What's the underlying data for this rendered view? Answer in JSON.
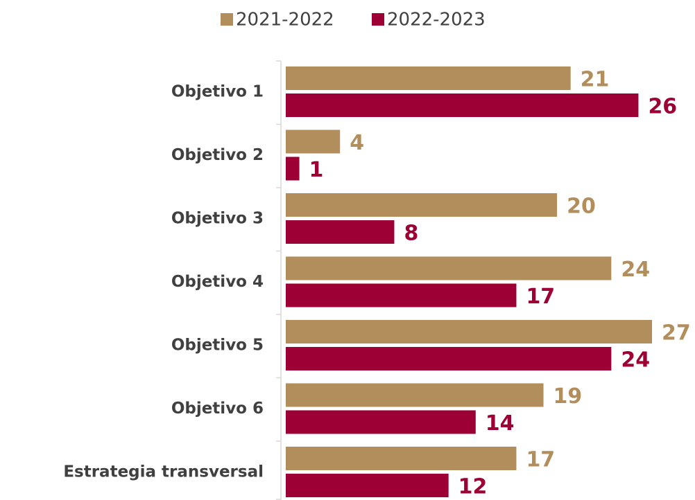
{
  "chart_data": {
    "type": "hbar",
    "categories": [
      "Objetivo 1",
      "Objetivo 2",
      "Objetivo 3",
      "Objetivo 4",
      "Objetivo 5",
      "Objetivo 6",
      "Estrategia transversal"
    ],
    "series": [
      {
        "name": "2021-2022",
        "color": "#b38e5d",
        "values": [
          21,
          4,
          20,
          24,
          27,
          19,
          17
        ]
      },
      {
        "name": "2022-2023",
        "color": "#9d0034",
        "values": [
          26,
          1,
          8,
          17,
          24,
          14,
          12
        ]
      }
    ],
    "legend": "top"
  }
}
